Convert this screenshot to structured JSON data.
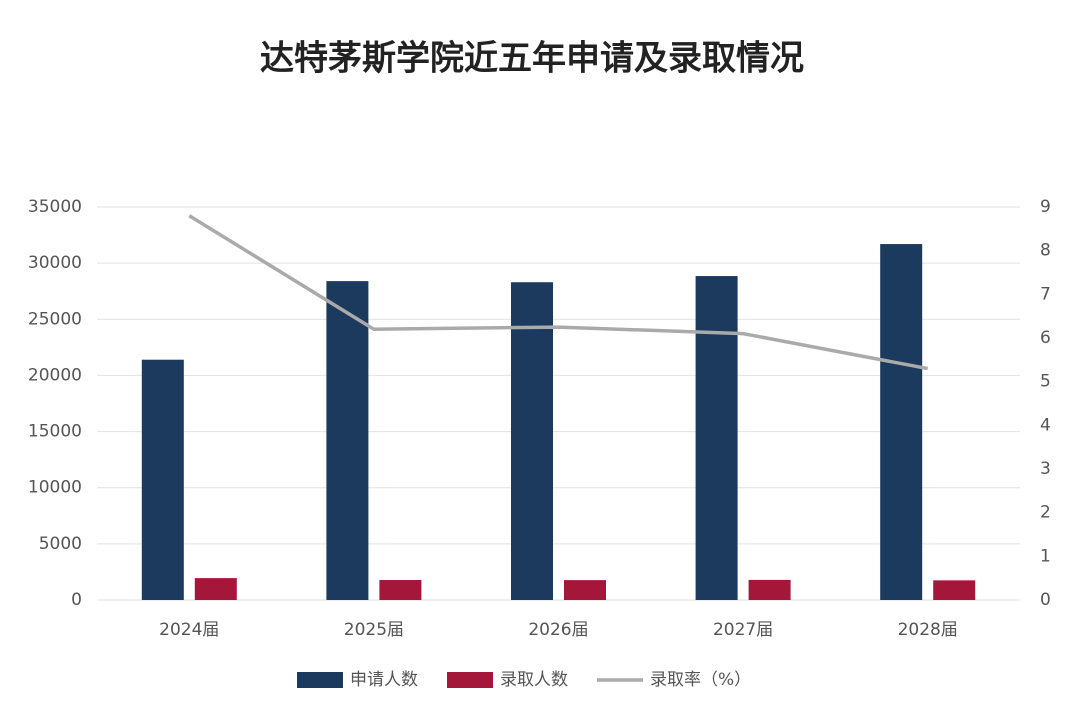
{
  "chart_data": {
    "type": "bar",
    "title": "达特茅斯学院近五年申请及录取情况",
    "categories": [
      "2024届",
      "2025届",
      "2026届",
      "2027届",
      "2028届"
    ],
    "series": [
      {
        "name": "申请人数",
        "type": "bar",
        "color": "#1b3a5e",
        "values": [
          21400,
          28400,
          28300,
          28850,
          31700
        ]
      },
      {
        "name": "录取人数",
        "type": "bar",
        "color": "#a5163b",
        "values": [
          1950,
          1780,
          1770,
          1790,
          1750
        ]
      },
      {
        "name": "录取率（%）",
        "type": "line",
        "axis": "y2",
        "color": "#aaaaaa",
        "values": [
          8.8,
          6.2,
          6.25,
          6.1,
          5.3
        ]
      }
    ],
    "ylim": [
      0,
      35000
    ],
    "yticks": [
      0,
      5000,
      10000,
      15000,
      20000,
      25000,
      30000,
      35000
    ],
    "y2lim": [
      0,
      9
    ],
    "y2ticks": [
      0,
      1,
      2,
      3,
      4,
      5,
      6,
      7,
      8,
      9
    ],
    "grid": true,
    "legend": "bottom"
  }
}
